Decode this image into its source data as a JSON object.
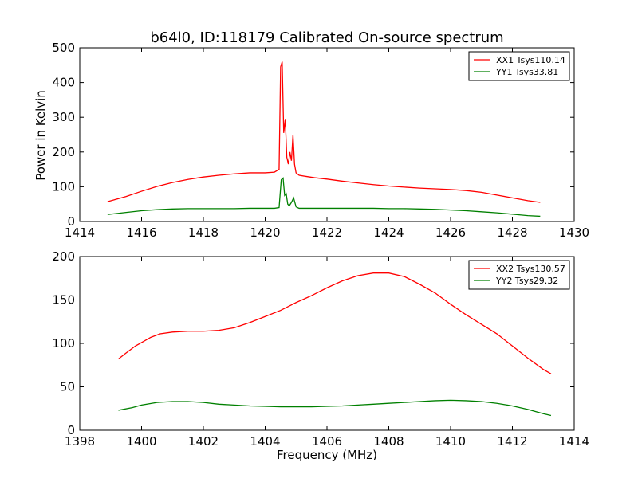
{
  "figure": {
    "title": "b64l0, ID:118179 Calibrated On-source spectrum",
    "xlabel": "Frequency (MHz)",
    "ylabel": "Power in Kelvin"
  },
  "chart_data": [
    {
      "type": "line",
      "title": "b64l0, ID:118179 Calibrated On-source spectrum",
      "xlabel": "",
      "ylabel": "Power in Kelvin",
      "xlim": [
        1414,
        1430
      ],
      "ylim": [
        0,
        500
      ],
      "xticks": [
        "1414",
        "1416",
        "1418",
        "1420",
        "1422",
        "1424",
        "1426",
        "1428",
        "1430"
      ],
      "yticks": [
        "0",
        "100",
        "200",
        "300",
        "400",
        "500"
      ],
      "grid": false,
      "legend_position": "top-right",
      "series": [
        {
          "name": "XX1 Tsys110.14",
          "color": "#ff0000",
          "x": [
            1414.9,
            1415.5,
            1416.0,
            1416.5,
            1417.0,
            1417.5,
            1418.0,
            1418.5,
            1419.0,
            1419.5,
            1420.0,
            1420.3,
            1420.45,
            1420.5,
            1420.55,
            1420.6,
            1420.65,
            1420.7,
            1420.75,
            1420.8,
            1420.85,
            1420.9,
            1420.95,
            1421.0,
            1421.1,
            1421.3,
            1421.6,
            1422.0,
            1422.5,
            1423.0,
            1423.5,
            1424.0,
            1424.5,
            1425.0,
            1425.5,
            1426.0,
            1426.5,
            1427.0,
            1427.5,
            1428.0,
            1428.5,
            1428.9
          ],
          "values": [
            57,
            72,
            87,
            101,
            112,
            121,
            128,
            133,
            137,
            140,
            140,
            142,
            150,
            445,
            460,
            255,
            295,
            185,
            165,
            200,
            175,
            250,
            165,
            140,
            133,
            130,
            126,
            122,
            116,
            111,
            106,
            102,
            99,
            96,
            94,
            92,
            89,
            84,
            76,
            68,
            60,
            55
          ]
        },
        {
          "name": "YY1 Tsys33.81",
          "color": "#008000",
          "x": [
            1414.9,
            1415.5,
            1416.0,
            1416.5,
            1417.0,
            1417.5,
            1418.0,
            1418.5,
            1419.0,
            1419.5,
            1420.0,
            1420.3,
            1420.45,
            1420.52,
            1420.58,
            1420.63,
            1420.68,
            1420.73,
            1420.78,
            1420.85,
            1420.92,
            1421.0,
            1421.1,
            1421.5,
            1422.0,
            1422.5,
            1423.0,
            1423.5,
            1424.0,
            1424.5,
            1425.0,
            1425.5,
            1426.0,
            1426.5,
            1427.0,
            1427.5,
            1428.0,
            1428.5,
            1428.9
          ],
          "values": [
            20,
            26,
            31,
            34,
            36,
            37,
            37,
            37,
            37,
            38,
            38,
            38,
            40,
            120,
            125,
            75,
            80,
            50,
            45,
            55,
            68,
            42,
            38,
            38,
            38,
            38,
            38,
            38,
            37,
            37,
            36,
            35,
            33,
            31,
            28,
            25,
            21,
            17,
            15
          ]
        }
      ]
    },
    {
      "type": "line",
      "title": "",
      "xlabel": "Frequency (MHz)",
      "ylabel": "",
      "xlim": [
        1398,
        1414
      ],
      "ylim": [
        0,
        200
      ],
      "xticks": [
        "1398",
        "1400",
        "1402",
        "1404",
        "1406",
        "1408",
        "1410",
        "1412",
        "1414"
      ],
      "yticks": [
        "0",
        "50",
        "100",
        "150",
        "200"
      ],
      "grid": false,
      "legend_position": "top-right",
      "series": [
        {
          "name": "XX2 Tsys130.57",
          "color": "#ff0000",
          "x": [
            1399.25,
            1399.5,
            1399.8,
            1400.0,
            1400.3,
            1400.6,
            1401.0,
            1401.5,
            1402.0,
            1402.5,
            1403.0,
            1403.5,
            1404.0,
            1404.5,
            1405.0,
            1405.5,
            1406.0,
            1406.5,
            1407.0,
            1407.5,
            1408.0,
            1408.5,
            1409.0,
            1409.5,
            1410.0,
            1410.5,
            1411.0,
            1411.5,
            1412.0,
            1412.5,
            1413.0,
            1413.25
          ],
          "values": [
            82,
            89,
            97,
            101,
            107,
            111,
            113,
            114,
            114,
            115,
            118,
            124,
            131,
            138,
            147,
            155,
            164,
            172,
            178,
            181,
            181,
            177,
            168,
            158,
            145,
            133,
            122,
            111,
            97,
            83,
            70,
            65
          ]
        },
        {
          "name": "YY2 Tsys29.32",
          "color": "#008000",
          "x": [
            1399.25,
            1399.7,
            1400.0,
            1400.5,
            1401.0,
            1401.5,
            1402.0,
            1402.5,
            1403.0,
            1403.5,
            1404.0,
            1404.5,
            1405.0,
            1405.5,
            1406.0,
            1406.5,
            1407.0,
            1407.5,
            1408.0,
            1408.5,
            1409.0,
            1409.5,
            1410.0,
            1410.5,
            1411.0,
            1411.5,
            1412.0,
            1412.5,
            1413.0,
            1413.25
          ],
          "values": [
            23,
            26,
            29,
            32,
            33,
            33,
            32,
            30,
            29,
            28,
            27.5,
            27,
            27,
            27,
            27.5,
            28,
            29,
            30,
            31,
            32,
            33,
            34,
            34.5,
            34,
            33,
            31,
            28,
            24,
            19,
            17
          ]
        }
      ]
    }
  ]
}
